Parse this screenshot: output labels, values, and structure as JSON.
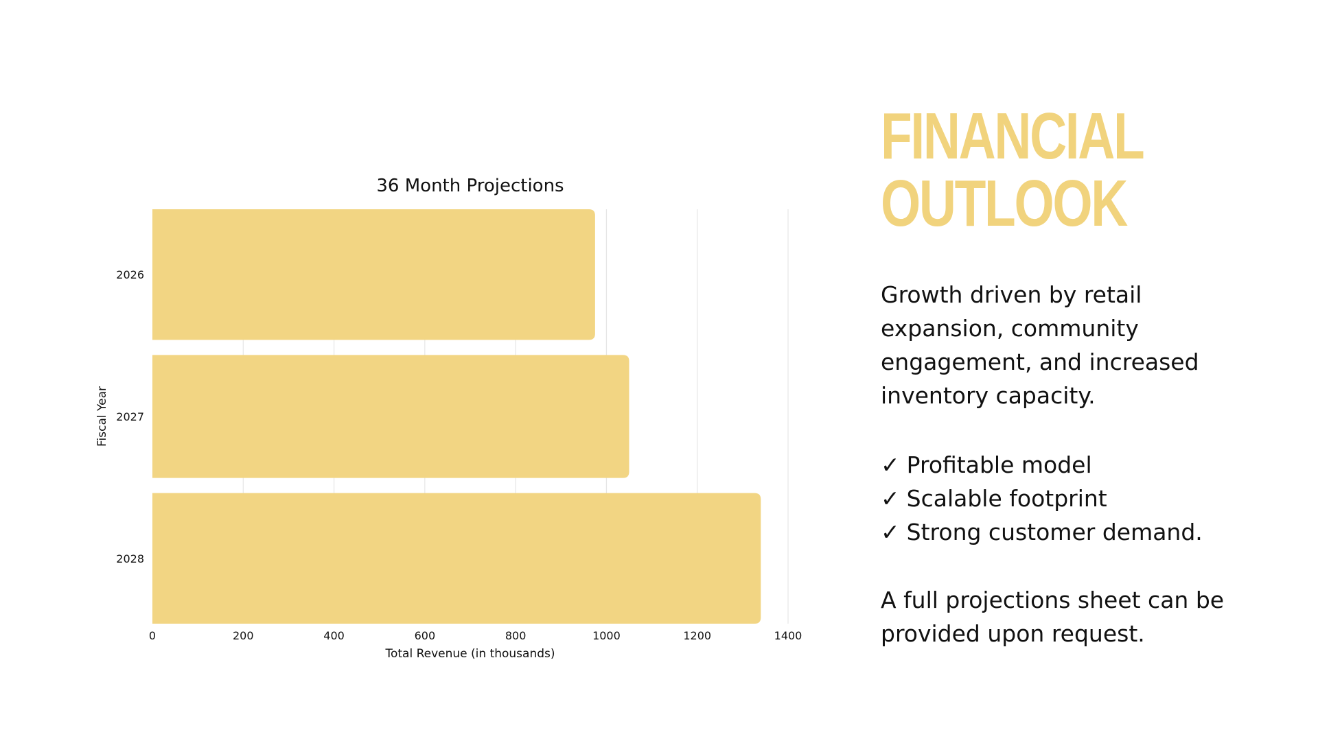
{
  "chart_data": {
    "type": "bar",
    "orientation": "horizontal",
    "title": "36 Month Projections",
    "xlabel": "Total Revenue (in thousands)",
    "ylabel": "Fiscal Year",
    "categories": [
      "2026",
      "2027",
      "2028"
    ],
    "values": [
      975,
      1050,
      1340
    ],
    "xlim": [
      0,
      1400
    ],
    "xticks": [
      "0",
      "200",
      "400",
      "600",
      "800",
      "1000",
      "1200",
      "1400"
    ],
    "bar_color": "#f2d583",
    "grid": true,
    "legend": "none"
  },
  "panel": {
    "headline_line1": "FINANCIAL",
    "headline_line2": "OUTLOOK",
    "headline_color": "#f1d37d",
    "description": "Growth driven by retail expansion, community engagement, and increased inventory capacity.",
    "check_symbol": "✓",
    "checklist": [
      "Profitable model",
      "Scalable footprint",
      "Strong customer demand."
    ],
    "footnote": "A full projections sheet can be provided upon request."
  }
}
